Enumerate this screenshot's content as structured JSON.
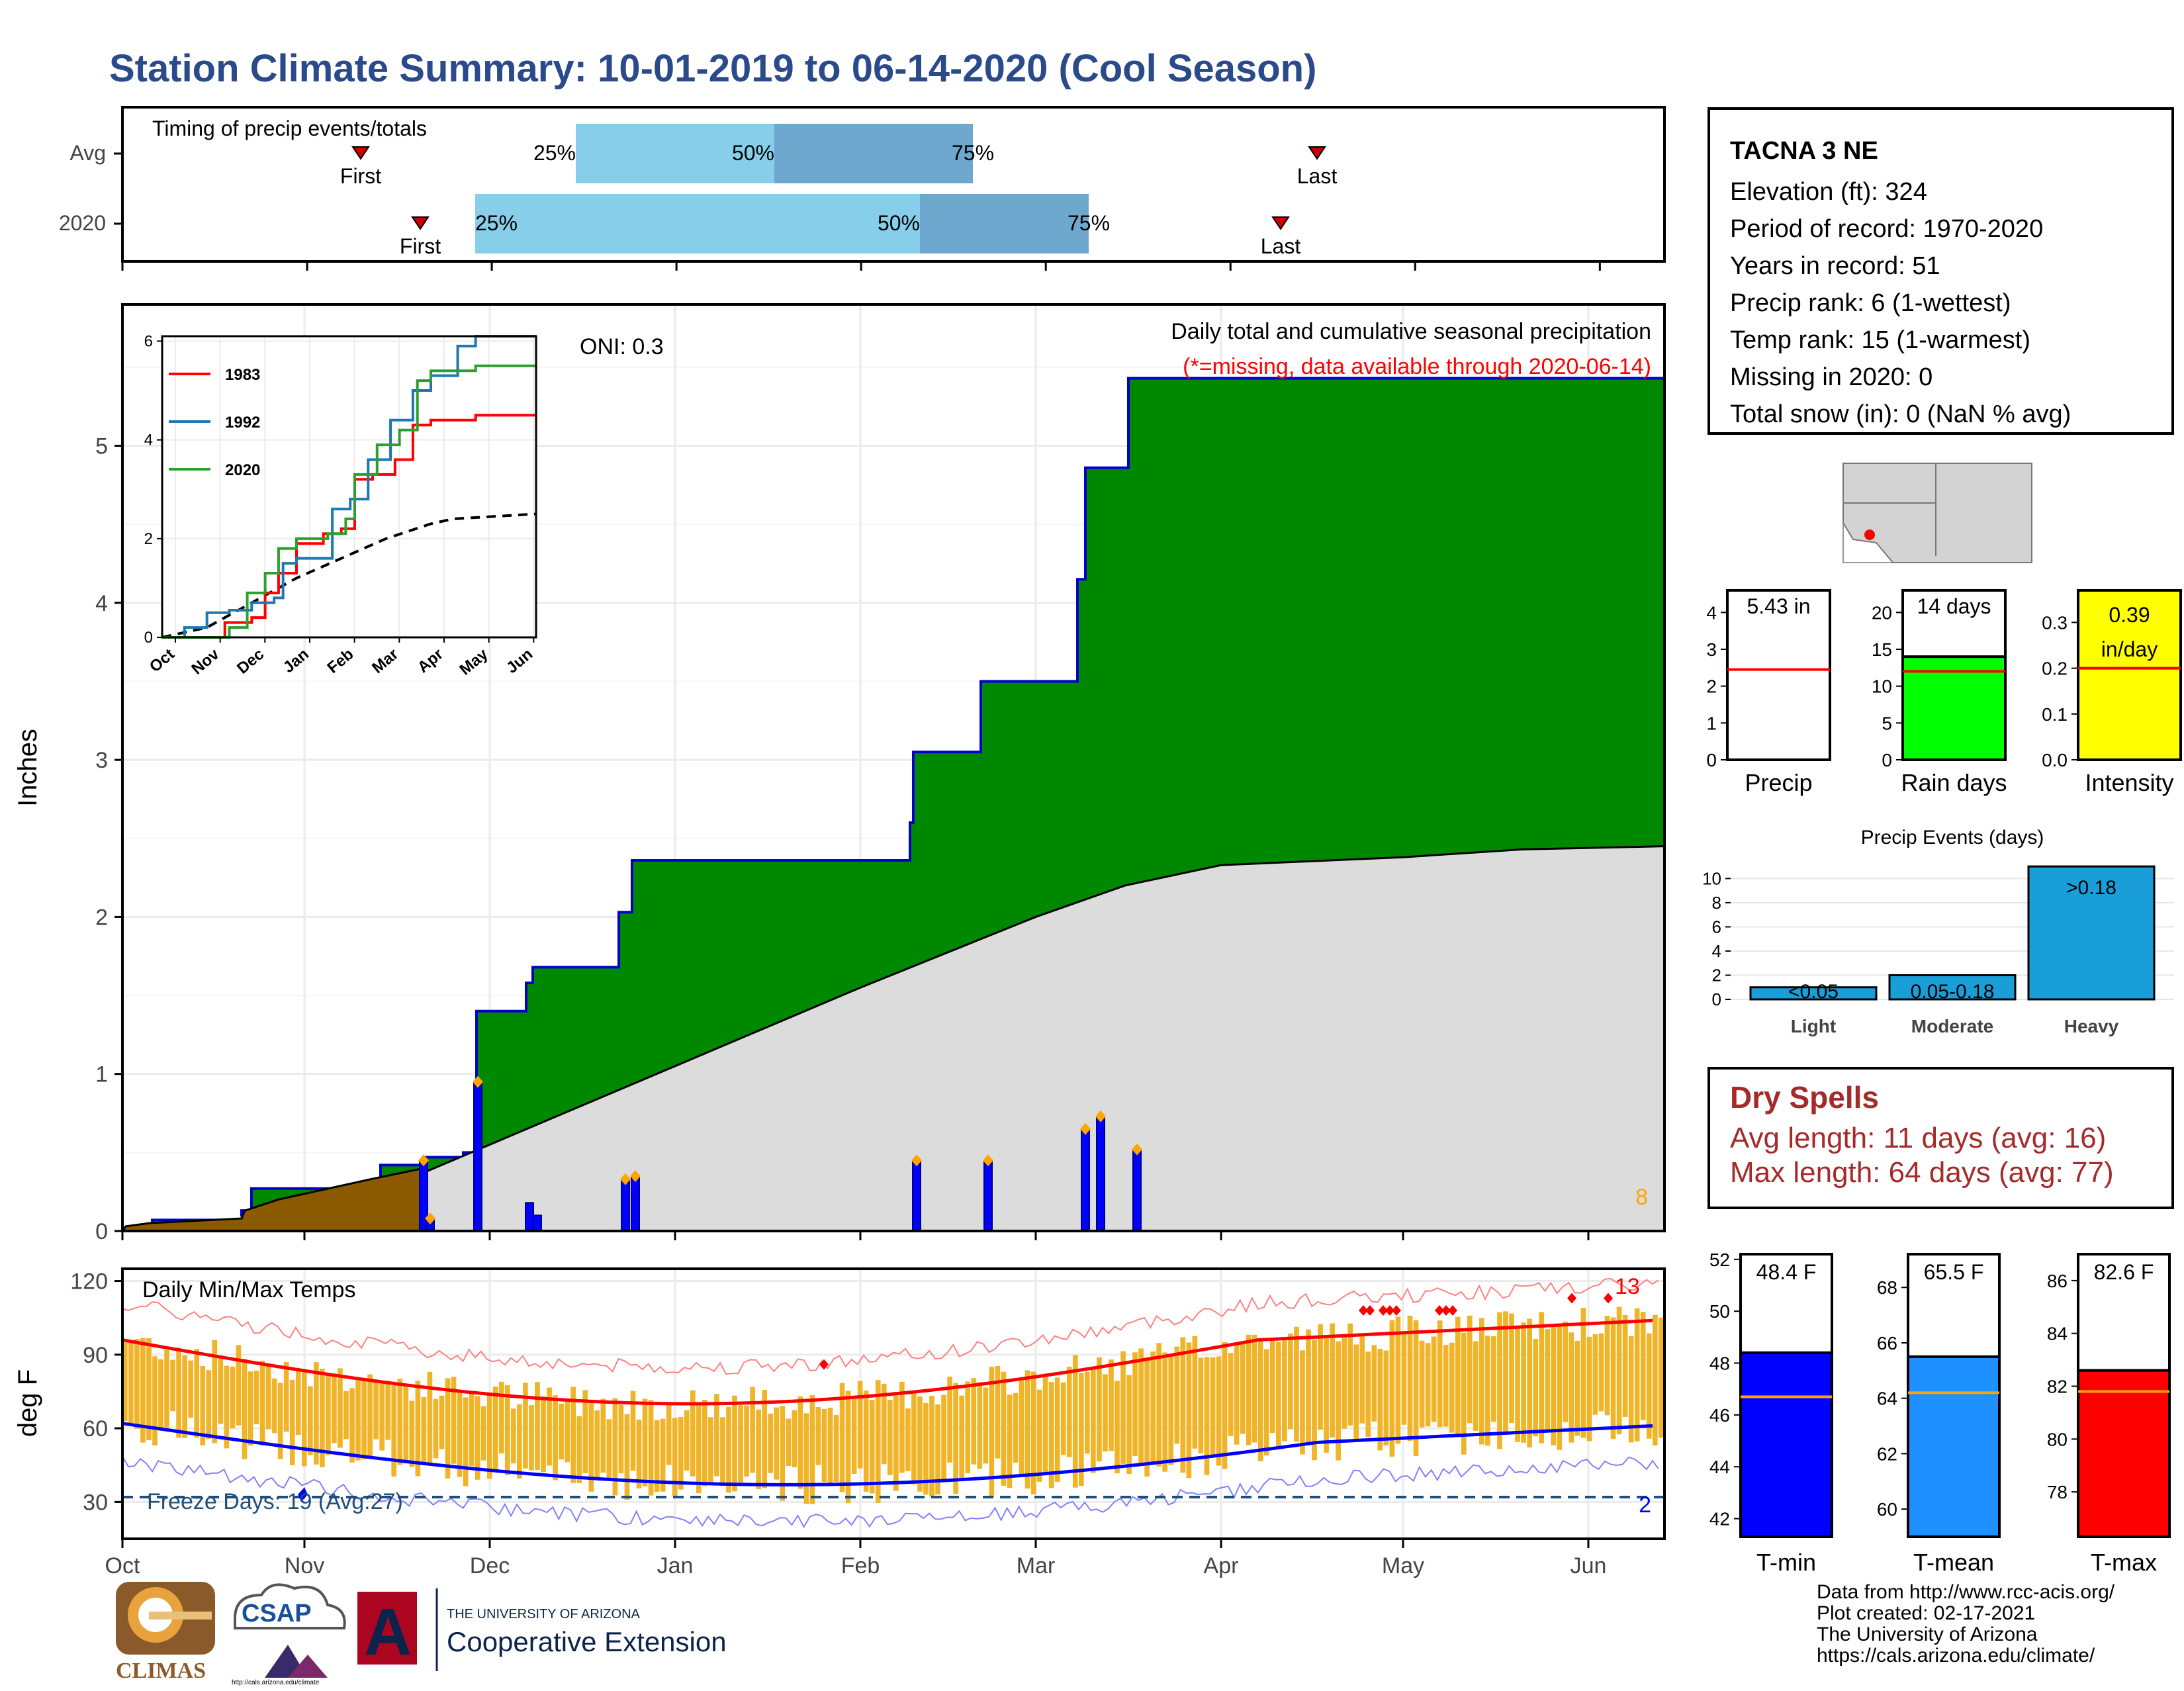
{
  "title": "Station Climate Summary: 10-01-2019 to 06-14-2020 (Cool Season)",
  "colors": {
    "title": "#2b4a8c",
    "avg_fill": "#dcdcdc",
    "cum2020_fill": "#008800",
    "pre_fill": "#8b5a00",
    "daily_bar": "#0000ff",
    "marker": "#ffa500",
    "tmin": "#0000ff",
    "tmax": "#ff0000",
    "range": "#f0b429",
    "dry": "#a52a2a"
  },
  "timing": {
    "label": "Timing of precip events/totals",
    "rows": [
      {
        "name": "Avg",
        "first": "First",
        "last": "Last",
        "p25": "25%",
        "p50": "50%",
        "p75": "75%"
      },
      {
        "name": "2020",
        "first": "First",
        "last": "Last",
        "p25": "25%",
        "p50": "50%",
        "p75": "75%"
      }
    ]
  },
  "main": {
    "ylabel": "Inches",
    "title": "Daily total and cumulative seasonal precipitation",
    "note": "(*=missing, data available through 2020-06-14)",
    "oni": "ONI: 0.3",
    "count": "8",
    "yticks": [
      "0",
      "1",
      "2",
      "3",
      "4",
      "5"
    ],
    "months": [
      "Oct",
      "Nov",
      "Dec",
      "Jan",
      "Feb",
      "Mar",
      "Apr",
      "May",
      "Jun"
    ]
  },
  "inset": {
    "yticks": [
      "0",
      "2",
      "4",
      "6"
    ],
    "months": [
      "Oct",
      "Nov",
      "Dec",
      "Jan",
      "Feb",
      "Mar",
      "Apr",
      "May",
      "Jun"
    ],
    "legend": [
      "1983",
      "1992",
      "2020"
    ]
  },
  "temps": {
    "ylabel": "deg F",
    "title": "Daily Min/Max Temps",
    "freeze": "Freeze Days: 19 (Avg:27)",
    "count_low": "2",
    "count_high": "13",
    "yticks": [
      "30",
      "60",
      "90",
      "120"
    ]
  },
  "station": {
    "name": "TACNA 3 NE",
    "elevation": "Elevation (ft): 324",
    "period": "Period of record: 1970-2020",
    "years": "Years in record: 51",
    "precip_rank": "Precip rank: 6 (1-wettest)",
    "temp_rank": "Temp rank: 15 (1-warmest)",
    "missing": "Missing in 2020: 0",
    "snow": "Total snow (in): 0 (NaN % avg)"
  },
  "stat_bars": [
    {
      "label": "Precip",
      "value_text": "5.43 in",
      "value": 5.43,
      "avg": 2.45,
      "yticks": [
        "0",
        "1",
        "2",
        "3",
        "4"
      ],
      "color": "#ffffff"
    },
    {
      "label": "Rain days",
      "value_text": "14 days",
      "value": 14,
      "avg": 12,
      "yticks": [
        "0",
        "5",
        "10",
        "15",
        "20"
      ],
      "color": "#00ff00"
    },
    {
      "label": "Intensity",
      "value_text": "0.39 in/day",
      "value": 0.39,
      "avg": 0.2,
      "yticks": [
        "0.0",
        "0.1",
        "0.2",
        "0.3"
      ],
      "color": "#ffff00"
    }
  ],
  "events": {
    "title": "Precip Events (days)",
    "yticks": [
      "0",
      "2",
      "4",
      "6",
      "8",
      "10"
    ],
    "bars": [
      {
        "label": "Light",
        "text": "<0.05",
        "value": 1
      },
      {
        "label": "Moderate",
        "text": "0.05-0.18",
        "value": 2
      },
      {
        "label": "Heavy",
        "text": ">0.18",
        "value": 11
      }
    ]
  },
  "dry": {
    "title": "Dry Spells",
    "avg": "Avg length: 11 days (avg: 16)",
    "max": "Max length: 64 days (avg: 77)"
  },
  "temp_bars": [
    {
      "label": "T-min",
      "value_text": "48.4 F",
      "value": 48.4,
      "avg": 46.7,
      "yticks": [
        "42",
        "44",
        "46",
        "48",
        "50",
        "52"
      ],
      "color": "#0000ff"
    },
    {
      "label": "T-mean",
      "value_text": "65.5 F",
      "value": 65.5,
      "avg": 64.2,
      "yticks": [
        "60",
        "62",
        "64",
        "66",
        "68"
      ],
      "color": "#1e90ff"
    },
    {
      "label": "T-max",
      "value_text": "82.6 F",
      "value": 82.6,
      "avg": 81.8,
      "yticks": [
        "78",
        "80",
        "82",
        "84",
        "86"
      ],
      "color": "#ff0000"
    }
  ],
  "credits": [
    "Data from http://www.rcc-acis.org/",
    "Plot created: 02-17-2021",
    "The University of Arizona",
    "https://cals.arizona.edu/climate/"
  ],
  "logos": {
    "climas": "CLIMAS",
    "csap": "CSAP",
    "csap_url": "http://cals.arizona.edu/climate",
    "ua_top": "THE UNIVERSITY OF ARIZONA",
    "ua_bottom": "Cooperative Extension"
  },
  "chart_data": [
    {
      "type": "area",
      "title": "Daily total and cumulative seasonal precipitation",
      "ylabel": "Inches",
      "ylim": [
        0,
        5.9
      ],
      "x": [
        "Oct",
        "Nov",
        "Dec",
        "Jan",
        "Feb",
        "Mar",
        "Apr",
        "May",
        "Jun"
      ],
      "series": [
        {
          "name": "2020",
          "values": [
            0.05,
            0.35,
            1.7,
            2.35,
            2.35,
            3.5,
            5.43,
            5.43,
            5.43
          ]
        },
        {
          "values": [
            0.03,
            0.3,
            0.8,
            1.2,
            1.6,
            1.95,
            2.3,
            2.4,
            2.45
          ]
        }
      ]
    },
    {
      "type": "line",
      "title": "",
      "ylim": [
        0,
        6.1
      ],
      "x": [
        "Oct",
        "Nov",
        "Dec",
        "Jan",
        "Feb",
        "Mar",
        "Apr",
        "May",
        "Jun"
      ],
      "series": [
        {
          "name": "1983",
          "values": [
            0.0,
            0.3,
            0.9,
            2.0,
            2.4,
            3.3,
            4.4,
            4.5,
            4.5
          ]
        },
        {
          "name": "1992",
          "values": [
            0.0,
            0.5,
            0.7,
            1.4,
            2.7,
            4.2,
            5.5,
            6.1,
            6.1
          ]
        },
        {
          "name": "2020",
          "values": [
            0.0,
            0.3,
            1.3,
            2.1,
            2.3,
            3.7,
            5.4,
            5.4,
            5.4
          ]
        }
      ]
    },
    {
      "type": "line",
      "title": "Daily Min/Max Temps",
      "ylabel": "deg F",
      "ylim": [
        15,
        125
      ],
      "x": [
        "Oct",
        "Nov",
        "Dec",
        "Jan",
        "Feb",
        "Mar",
        "Apr",
        "May",
        "Jun"
      ],
      "series": [
        {
          "values": [
            96,
            85,
            76,
            70,
            72,
            79,
            85,
            92,
            101
          ]
        },
        {
          "values": [
            62,
            50,
            40,
            37,
            38,
            43,
            50,
            57,
            64
          ]
        }
      ]
    },
    {
      "type": "bar",
      "title": "Precip Events (days)",
      "categories": [
        "Light",
        "Moderate",
        "Heavy"
      ],
      "values": [
        1,
        2,
        11
      ],
      "ylim": [
        0,
        11.5
      ]
    }
  ]
}
